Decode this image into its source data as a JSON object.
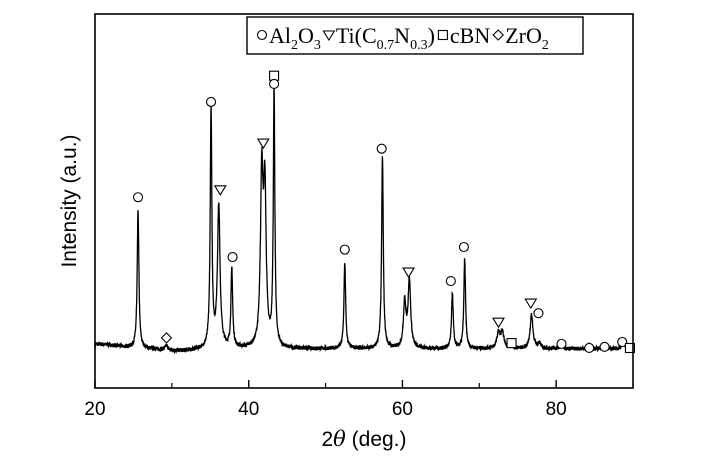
{
  "chart_data": {
    "type": "line",
    "xlabel_prefix": "2",
    "xlabel_theta": "θ",
    "xlabel_suffix": " (deg.)",
    "ylabel": "Intensity (a.u.)",
    "xlim": [
      20,
      90
    ],
    "ylim": [
      0,
      100
    ],
    "xticks": [
      20,
      40,
      60,
      80
    ],
    "minor_xticks": [
      30,
      50,
      70
    ],
    "grid": false,
    "legend": {
      "placement": "top-right",
      "entries": [
        {
          "symbol": "circle",
          "parts": [
            [
              "Al",
              ""
            ],
            [
              "2",
              "sub"
            ],
            [
              "O",
              ""
            ],
            [
              "3",
              "sub"
            ]
          ]
        },
        {
          "symbol": "triangle-down",
          "parts": [
            [
              "Ti(C",
              ""
            ],
            [
              "0.7",
              "sub"
            ],
            [
              "N",
              ""
            ],
            [
              "0.3",
              "sub"
            ],
            [
              ")",
              ""
            ]
          ]
        },
        {
          "symbol": "square",
          "parts": [
            [
              "cBN",
              ""
            ]
          ]
        },
        {
          "symbol": "diamond",
          "parts": [
            [
              "ZrO",
              ""
            ],
            [
              "2",
              "sub"
            ]
          ]
        }
      ]
    },
    "baseline": 10.5,
    "peaks": [
      {
        "x": 25.6,
        "h": 37,
        "w": 0.13
      },
      {
        "x": 29.3,
        "h": 1.2,
        "w": 0.2
      },
      {
        "x": 35.1,
        "h": 63,
        "w": 0.13
      },
      {
        "x": 36.1,
        "h": 38,
        "w": 0.2
      },
      {
        "x": 37.8,
        "h": 21,
        "w": 0.13
      },
      {
        "x": 41.7,
        "h": 45,
        "w": 0.2
      },
      {
        "x": 42.1,
        "h": 40,
        "w": 0.2
      },
      {
        "x": 43.3,
        "h": 69,
        "w": 0.12
      },
      {
        "x": 52.5,
        "h": 23,
        "w": 0.13
      },
      {
        "x": 57.4,
        "h": 51,
        "w": 0.13
      },
      {
        "x": 60.3,
        "h": 12,
        "w": 0.2
      },
      {
        "x": 60.9,
        "h": 18,
        "w": 0.2
      },
      {
        "x": 66.5,
        "h": 15,
        "w": 0.13
      },
      {
        "x": 68.1,
        "h": 24,
        "w": 0.13
      },
      {
        "x": 72.5,
        "h": 4,
        "w": 0.25
      },
      {
        "x": 73.0,
        "h": 4,
        "w": 0.25
      },
      {
        "x": 74.2,
        "h": 1.2,
        "w": 0.2
      },
      {
        "x": 76.8,
        "h": 9,
        "w": 0.22
      },
      {
        "x": 77.8,
        "h": 1.5,
        "w": 0.2
      },
      {
        "x": 80.7,
        "h": 1.8,
        "w": 0.15
      },
      {
        "x": 84.3,
        "h": 1.2,
        "w": 0.15
      },
      {
        "x": 86.3,
        "h": 1.0,
        "w": 0.15
      },
      {
        "x": 88.7,
        "h": 2.0,
        "w": 0.15
      }
    ],
    "markers": [
      {
        "x": 25.6,
        "y": 51,
        "symbol": "circle"
      },
      {
        "x": 29.3,
        "y": 13.4,
        "symbol": "diamond"
      },
      {
        "x": 35.1,
        "y": 76.5,
        "symbol": "circle"
      },
      {
        "x": 36.3,
        "y": 53,
        "symbol": "triangle-down"
      },
      {
        "x": 37.9,
        "y": 35,
        "symbol": "circle"
      },
      {
        "x": 41.9,
        "y": 65.5,
        "symbol": "triangle-down"
      },
      {
        "x": 43.3,
        "y": 83.5,
        "symbol": "square"
      },
      {
        "x": 43.3,
        "y": 81.3,
        "symbol": "circle"
      },
      {
        "x": 52.5,
        "y": 37,
        "symbol": "circle"
      },
      {
        "x": 57.3,
        "y": 64,
        "symbol": "circle"
      },
      {
        "x": 60.8,
        "y": 31,
        "symbol": "triangle-down"
      },
      {
        "x": 66.3,
        "y": 28.6,
        "symbol": "circle"
      },
      {
        "x": 68.0,
        "y": 37.7,
        "symbol": "circle"
      },
      {
        "x": 72.5,
        "y": 17.6,
        "symbol": "triangle-down"
      },
      {
        "x": 74.2,
        "y": 12,
        "symbol": "square"
      },
      {
        "x": 76.7,
        "y": 22.7,
        "symbol": "triangle-down"
      },
      {
        "x": 77.7,
        "y": 20,
        "symbol": "circle"
      },
      {
        "x": 80.7,
        "y": 11.8,
        "symbol": "circle"
      },
      {
        "x": 84.3,
        "y": 10.7,
        "symbol": "circle"
      },
      {
        "x": 86.3,
        "y": 11,
        "symbol": "circle"
      },
      {
        "x": 88.6,
        "y": 12.3,
        "symbol": "circle"
      },
      {
        "x": 89.6,
        "y": 10.7,
        "symbol": "square"
      }
    ]
  }
}
